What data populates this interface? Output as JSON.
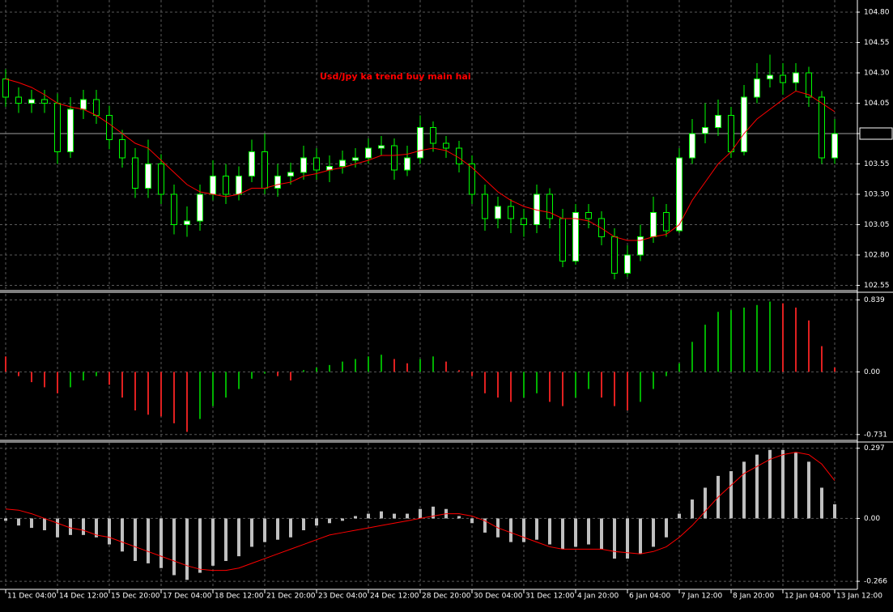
{
  "chart_data": [
    {
      "type": "candlestick",
      "annotation": "Usd/Jpy ka trend buy main hai",
      "annotation_color": "#ff0000",
      "open": [
        104.25,
        104.1,
        104.05,
        104.08,
        104.05,
        103.65,
        104.0,
        104.08,
        103.95,
        103.75,
        103.6,
        103.35,
        103.55,
        103.3,
        103.05,
        103.08,
        103.3,
        103.45,
        103.3,
        103.45,
        103.65,
        103.35,
        103.45,
        103.48,
        103.6,
        103.5,
        103.53,
        103.58,
        103.6,
        103.68,
        103.7,
        103.5,
        103.6,
        103.85,
        103.72,
        103.68,
        103.55,
        103.3,
        103.1,
        103.2,
        103.1,
        103.05,
        103.3,
        103.1,
        102.75,
        103.15,
        103.1,
        102.95,
        102.65,
        102.8,
        102.95,
        103.15,
        103.0,
        103.6,
        103.8,
        103.85,
        103.95,
        103.65,
        104.1,
        104.25,
        104.28,
        104.22,
        104.3,
        104.1,
        103.6
      ],
      "high": [
        104.33,
        104.18,
        104.16,
        104.16,
        104.13,
        104.1,
        104.16,
        104.16,
        104.03,
        103.83,
        103.68,
        103.75,
        103.63,
        103.38,
        103.2,
        103.38,
        103.58,
        103.55,
        103.53,
        103.75,
        103.8,
        103.55,
        103.56,
        103.7,
        103.68,
        103.62,
        103.66,
        103.68,
        103.76,
        103.78,
        103.76,
        103.7,
        103.95,
        103.9,
        103.78,
        103.74,
        103.62,
        103.38,
        103.28,
        103.26,
        103.18,
        103.38,
        103.35,
        103.18,
        103.22,
        103.22,
        103.16,
        103.02,
        102.88,
        103.05,
        103.28,
        103.22,
        103.68,
        103.92,
        104.05,
        104.08,
        104.02,
        104.2,
        104.38,
        104.45,
        104.38,
        104.38,
        104.35,
        104.15,
        103.92
      ],
      "low": [
        104.02,
        103.97,
        103.97,
        103.97,
        103.55,
        103.6,
        103.92,
        103.88,
        103.67,
        103.52,
        103.27,
        103.27,
        103.22,
        102.97,
        102.95,
        103.0,
        103.25,
        103.22,
        103.25,
        103.4,
        103.3,
        103.28,
        103.38,
        103.42,
        103.42,
        103.4,
        103.47,
        103.52,
        103.55,
        103.62,
        103.42,
        103.45,
        103.55,
        103.65,
        103.6,
        103.48,
        103.22,
        103.0,
        103.02,
        102.98,
        102.95,
        102.98,
        103.02,
        102.7,
        102.72,
        103.02,
        102.88,
        102.6,
        102.62,
        102.75,
        102.9,
        102.95,
        102.98,
        103.55,
        103.72,
        103.78,
        103.6,
        103.62,
        104.05,
        104.18,
        104.12,
        104.15,
        104.02,
        103.55,
        103.55
      ],
      "close": [
        104.1,
        104.05,
        104.08,
        104.05,
        103.65,
        104.0,
        104.08,
        103.95,
        103.75,
        103.6,
        103.35,
        103.55,
        103.3,
        103.05,
        103.08,
        103.3,
        103.45,
        103.3,
        103.45,
        103.65,
        103.35,
        103.45,
        103.48,
        103.6,
        103.5,
        103.53,
        103.58,
        103.6,
        103.68,
        103.7,
        103.5,
        103.6,
        103.85,
        103.72,
        103.68,
        103.55,
        103.3,
        103.1,
        103.2,
        103.1,
        103.05,
        103.3,
        103.1,
        102.75,
        103.15,
        103.1,
        102.95,
        102.65,
        102.8,
        102.95,
        103.15,
        103.0,
        103.6,
        103.8,
        103.85,
        103.95,
        103.65,
        104.1,
        104.25,
        104.28,
        104.22,
        104.3,
        104.1,
        103.6,
        103.8
      ],
      "ma": {
        "color": "#ff0000",
        "values": [
          104.25,
          104.22,
          104.18,
          104.12,
          104.05,
          104.02,
          104.0,
          103.95,
          103.88,
          103.8,
          103.72,
          103.68,
          103.58,
          103.48,
          103.38,
          103.32,
          103.3,
          103.28,
          103.3,
          103.35,
          103.35,
          103.38,
          103.4,
          103.45,
          103.47,
          103.5,
          103.52,
          103.55,
          103.58,
          103.62,
          103.62,
          103.63,
          103.66,
          103.68,
          103.66,
          103.6,
          103.52,
          103.42,
          103.32,
          103.25,
          103.2,
          103.17,
          103.15,
          103.1,
          103.1,
          103.08,
          103.02,
          102.95,
          102.92,
          102.92,
          102.95,
          102.97,
          103.05,
          103.25,
          103.4,
          103.55,
          103.65,
          103.8,
          103.92,
          104.0,
          104.08,
          104.15,
          104.12,
          104.05,
          103.98
        ]
      },
      "up_color": "#ffffff",
      "down_color": "#000000",
      "wick_color": "#00ff00",
      "ylim": [
        102.52,
        104.9
      ],
      "yticks": [
        {
          "value": 104.8,
          "label": "104.80"
        },
        {
          "value": 104.55,
          "label": "104.55"
        },
        {
          "value": 104.3,
          "label": "104.30"
        },
        {
          "value": 104.05,
          "label": "104.05"
        },
        {
          "value": 103.8,
          "label": "103.80"
        },
        {
          "value": 103.55,
          "label": "103.55"
        },
        {
          "value": 103.3,
          "label": "103.30"
        },
        {
          "value": 103.05,
          "label": "103.05"
        },
        {
          "value": 102.8,
          "label": "102.80"
        },
        {
          "value": 102.55,
          "label": "102.55"
        }
      ],
      "grid": true
    },
    {
      "type": "histogram",
      "values": [
        0.18,
        -0.05,
        -0.12,
        -0.18,
        -0.25,
        -0.18,
        -0.1,
        -0.05,
        -0.15,
        -0.3,
        -0.45,
        -0.5,
        -0.52,
        -0.6,
        -0.7,
        -0.55,
        -0.4,
        -0.3,
        -0.2,
        -0.08,
        -0.02,
        -0.05,
        -0.1,
        0.02,
        0.05,
        0.08,
        0.12,
        0.15,
        0.18,
        0.2,
        0.15,
        0.1,
        0.15,
        0.18,
        0.12,
        0.02,
        -0.05,
        -0.25,
        -0.3,
        -0.35,
        -0.3,
        -0.25,
        -0.35,
        -0.4,
        -0.3,
        -0.2,
        -0.3,
        -0.4,
        -0.45,
        -0.35,
        -0.2,
        -0.05,
        0.1,
        0.35,
        0.55,
        0.7,
        0.72,
        0.75,
        0.78,
        0.82,
        0.8,
        0.75,
        0.6,
        0.3,
        0.05
      ],
      "up_color": "#00b000",
      "down_color": "#e02020",
      "ylim": [
        -0.79,
        0.91
      ],
      "yticks": [
        0.839,
        {
          "value": 0,
          "label": "0.00"
        },
        -0.731
      ],
      "grid": true
    },
    {
      "type": "macd",
      "categories": [
        "11 Dec 04:00",
        null,
        null,
        null,
        "14 Dec 12:00",
        null,
        null,
        null,
        "15 Dec 20:00",
        null,
        null,
        null,
        "17 Dec 04:00",
        null,
        null,
        null,
        "18 Dec 12:00",
        null,
        null,
        null,
        "21 Dec 20:00",
        null,
        null,
        null,
        "23 Dec 04:00",
        null,
        null,
        null,
        "24 Dec 12:00",
        null,
        null,
        null,
        "28 Dec 20:00",
        null,
        null,
        null,
        "30 Dec 04:00",
        null,
        null,
        null,
        "31 Dec 12:00",
        null,
        null,
        null,
        "4 Jan 20:00",
        null,
        null,
        null,
        "6 Jan 04:00",
        null,
        null,
        null,
        "7 Jan 12:00",
        null,
        null,
        null,
        "8 Jan 20:00",
        null,
        null,
        null,
        "12 Jan 04:00",
        null,
        null,
        null,
        "13 Jan 12:00"
      ],
      "values": [
        -0.01,
        -0.03,
        -0.04,
        -0.05,
        -0.08,
        -0.07,
        -0.07,
        -0.08,
        -0.11,
        -0.14,
        -0.18,
        -0.19,
        -0.21,
        -0.24,
        -0.26,
        -0.23,
        -0.2,
        -0.18,
        -0.16,
        -0.12,
        -0.1,
        -0.09,
        -0.08,
        -0.05,
        -0.03,
        -0.02,
        -0.01,
        0.01,
        0.02,
        0.03,
        0.02,
        0.02,
        0.04,
        0.05,
        0.04,
        0.01,
        -0.02,
        -0.06,
        -0.08,
        -0.1,
        -0.1,
        -0.09,
        -0.11,
        -0.13,
        -0.12,
        -0.11,
        -0.13,
        -0.17,
        -0.17,
        -0.15,
        -0.12,
        -0.08,
        0.02,
        0.08,
        0.13,
        0.18,
        0.2,
        0.24,
        0.27,
        0.29,
        0.29,
        0.28,
        0.24,
        0.13,
        0.06
      ],
      "color": "#c0c0c0",
      "signal": {
        "color": "#ff0000",
        "values": [
          0.04,
          0.035,
          0.02,
          0.0,
          -0.02,
          -0.04,
          -0.05,
          -0.07,
          -0.08,
          -0.1,
          -0.12,
          -0.14,
          -0.16,
          -0.18,
          -0.2,
          -0.215,
          -0.22,
          -0.22,
          -0.21,
          -0.19,
          -0.17,
          -0.15,
          -0.13,
          -0.11,
          -0.09,
          -0.07,
          -0.06,
          -0.05,
          -0.04,
          -0.03,
          -0.02,
          -0.01,
          0.0,
          0.01,
          0.02,
          0.02,
          0.01,
          -0.01,
          -0.04,
          -0.06,
          -0.08,
          -0.1,
          -0.12,
          -0.13,
          -0.13,
          -0.13,
          -0.13,
          -0.14,
          -0.145,
          -0.15,
          -0.14,
          -0.12,
          -0.08,
          -0.03,
          0.03,
          0.09,
          0.14,
          0.19,
          0.22,
          0.25,
          0.27,
          0.28,
          0.27,
          0.23,
          0.16
        ]
      },
      "ylim": [
        -0.3,
        0.32
      ],
      "yticks": [
        0.297,
        {
          "value": 0,
          "label": "0.00"
        },
        -0.266
      ],
      "grid": true
    }
  ]
}
